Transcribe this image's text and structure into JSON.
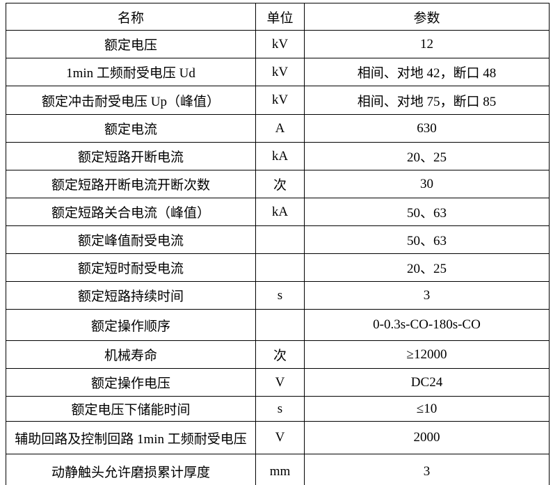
{
  "table": {
    "headers": {
      "name": "名称",
      "unit": "单位",
      "value": "参数"
    },
    "rows": [
      {
        "name": "额定电压",
        "unit": "kV",
        "value": "12"
      },
      {
        "name": "1min 工频耐受电压 Ud",
        "unit": "kV",
        "value": "相间、对地 42，断口 48"
      },
      {
        "name": "额定冲击耐受电压 Up（峰值）",
        "unit": "kV",
        "value": "相间、对地 75，断口 85"
      },
      {
        "name": "额定电流",
        "unit": "A",
        "value": "630"
      },
      {
        "name": "额定短路开断电流",
        "unit": "kA",
        "value": "20、25"
      },
      {
        "name": "额定短路开断电流开断次数",
        "unit": "次",
        "value": "30"
      },
      {
        "name": "额定短路关合电流（峰值）",
        "unit": "kA",
        "value": "50、63"
      },
      {
        "name": "额定峰值耐受电流",
        "unit": "",
        "value": "50、63"
      },
      {
        "name": "额定短时耐受电流",
        "unit": "",
        "value": "20、25"
      },
      {
        "name": "额定短路持续时间",
        "unit": "s",
        "value": "3"
      },
      {
        "name": "额定操作顺序",
        "unit": "",
        "value": "0-0.3s-CO-180s-CO"
      },
      {
        "name": "机械寿命",
        "unit": "次",
        "value": "≥12000"
      },
      {
        "name": "额定操作电压",
        "unit": "V",
        "value": "DC24"
      },
      {
        "name": "额定电压下储能时间",
        "unit": "s",
        "value": "≤10"
      },
      {
        "name": "辅助回路及控制回路 1min 工频耐受电压",
        "unit": "V",
        "value": "2000"
      },
      {
        "name": "动静触头允许磨损累计厚度",
        "unit": "mm",
        "value": "3"
      }
    ],
    "colors": {
      "border": "#000000",
      "text": "#000000",
      "background": "#ffffff"
    }
  }
}
